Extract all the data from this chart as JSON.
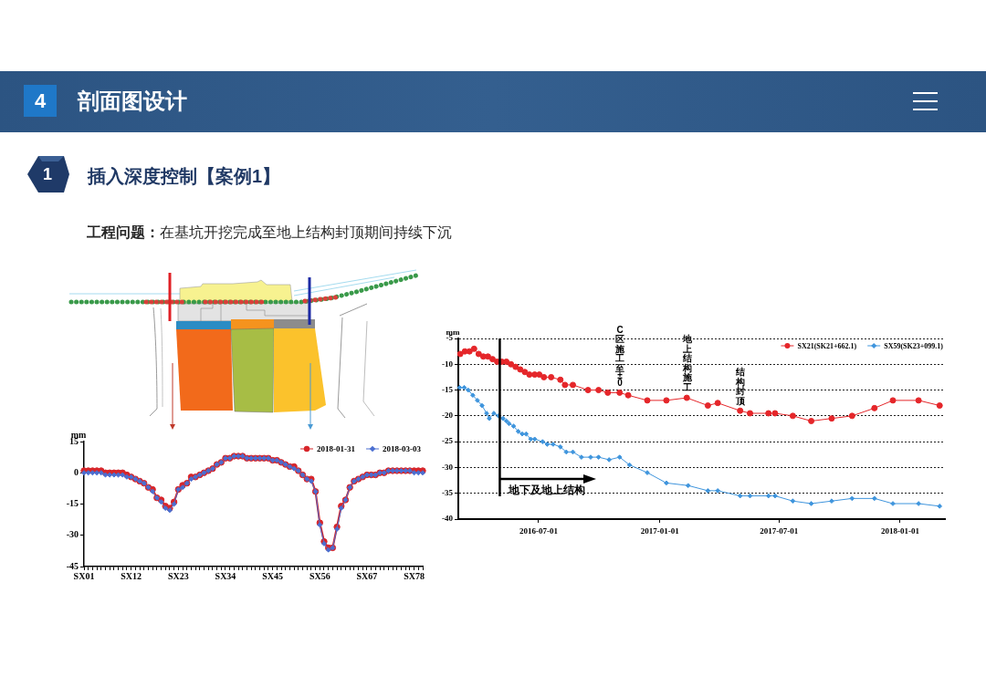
{
  "chart_data": [
    {
      "type": "line",
      "annotations": [
        "4",
        "剖面图设计",
        "1",
        "插入深度控制【案例1】",
        "工程问题：",
        "在基坑开挖完成至地上结构封顶期间持续下沉"
      ],
      "ylabel": "mm",
      "categories": [
        "SX01",
        null,
        null,
        null,
        null,
        null,
        null,
        null,
        null,
        null,
        null,
        "SX12",
        null,
        null,
        null,
        null,
        null,
        null,
        null,
        null,
        null,
        null,
        "SX23",
        null,
        null,
        null,
        null,
        null,
        null,
        null,
        null,
        null,
        null,
        "SX34",
        null,
        null,
        null,
        null,
        null,
        null,
        null,
        null,
        null,
        null,
        "SX45",
        null,
        null,
        null,
        null,
        null,
        null,
        null,
        null,
        null,
        null,
        "SX56",
        null,
        null,
        null,
        null,
        null,
        null,
        null,
        null,
        null,
        null,
        "SX67",
        null,
        null,
        null,
        null,
        null,
        null,
        null,
        null,
        null,
        null,
        "SX78",
        null,
        null
      ],
      "series": [
        {
          "name": "2018-01-31",
          "color": "#d7262b",
          "marker": "circle",
          "values": [
            1,
            1,
            1,
            1,
            1,
            0,
            0,
            0,
            0,
            0,
            -1,
            -2,
            -3,
            -4,
            -5,
            -7,
            -8,
            -12,
            -13,
            -16,
            -17,
            -14,
            -8,
            -6,
            -5,
            -2,
            -2,
            -1,
            0,
            1,
            2,
            4,
            5,
            7,
            7,
            8,
            8,
            8,
            7,
            7,
            7,
            7,
            7,
            7,
            6,
            6,
            5,
            4,
            3,
            3,
            1,
            -1,
            -3,
            -3,
            -9,
            -24,
            -33,
            -36,
            -36,
            -26,
            -16,
            -13,
            -7,
            -4,
            -3,
            -2,
            -1,
            -1,
            -1,
            0,
            0,
            1,
            1,
            1,
            1,
            1,
            1,
            1,
            1,
            1
          ]
        },
        {
          "name": "2018-03-03",
          "color": "#4b6fd1",
          "marker": "diamond",
          "values": [
            0,
            0,
            0,
            0,
            0,
            -1,
            -1,
            -1,
            -1,
            -1,
            -2,
            -2,
            -3,
            -4,
            -5,
            -7,
            -9,
            -12,
            -14,
            -17,
            -18,
            -15,
            -8,
            -7,
            -5,
            -3,
            -2,
            -1,
            0,
            1,
            2,
            4,
            5,
            7,
            7,
            8,
            8,
            8,
            7,
            7,
            7,
            7,
            7,
            7,
            6,
            6,
            5,
            4,
            3,
            2,
            1,
            -1,
            -3,
            -4,
            -9,
            -25,
            -34,
            -37,
            -36,
            -27,
            -17,
            -13,
            -7,
            -4,
            -3,
            -2,
            -1,
            -1,
            -1,
            0,
            0,
            1,
            1,
            1,
            1,
            1,
            1,
            0,
            0,
            0
          ]
        }
      ],
      "ylim": [
        -45,
        15
      ],
      "yticks": [
        -45,
        -30,
        -15,
        0,
        15
      ],
      "legend": "top right"
    },
    {
      "type": "line",
      "ylabel": "mm",
      "series": [
        {
          "name": "SX21(SK21+662.1)",
          "color": "#e5262a",
          "marker": "circle",
          "x": [
            "2016-03-04",
            "2016-03-11",
            "2016-03-18",
            "2016-03-25",
            "2016-04-01",
            "2016-04-08",
            "2016-04-15",
            "2016-04-22",
            "2016-04-29",
            "2016-05-06",
            "2016-05-13",
            "2016-05-20",
            "2016-05-27",
            "2016-06-03",
            "2016-06-10",
            "2016-06-17",
            "2016-06-25",
            "2016-07-02",
            "2016-07-09",
            "2016-07-20",
            "2016-08-03",
            "2016-08-10",
            "2016-08-22",
            "2016-09-14",
            "2016-09-30",
            "2016-10-14",
            "2016-11-01",
            "2016-11-14",
            "2016-12-13",
            "2017-01-11",
            "2017-02-11",
            "2017-03-15",
            "2017-03-30",
            "2017-05-03",
            "2017-05-18",
            "2017-06-15",
            "2017-06-25",
            "2017-07-22",
            "2017-08-19",
            "2017-09-19",
            "2017-10-20",
            "2017-11-23",
            "2017-12-21",
            "2018-01-29",
            "2018-03-02"
          ],
          "values": [
            -8,
            -7.5,
            -7.5,
            -7,
            -8,
            -8.5,
            -8.5,
            -9,
            -9.5,
            -9.5,
            -9.5,
            -10,
            -10.5,
            -11,
            -11.5,
            -12,
            -12,
            -12,
            -12.5,
            -12.5,
            -13,
            -14,
            -14,
            -15,
            -15,
            -15.5,
            -15.5,
            -16,
            -17,
            -17,
            -16.5,
            -18,
            -17.5,
            -19,
            -19.5,
            -19.5,
            -19.5,
            -20,
            -21,
            -20.5,
            -20,
            -18.5,
            -17,
            -17,
            -18
          ]
        },
        {
          "name": "SX59(SK23+099.1)",
          "color": "#3f95dd",
          "marker": "diamond",
          "x": [
            "2016-03-03",
            "2016-03-10",
            "2016-03-16",
            "2016-03-23",
            "2016-03-30",
            "2016-04-06",
            "2016-04-13",
            "2016-04-17",
            "2016-04-24",
            "2016-05-01",
            "2016-05-08",
            "2016-05-13",
            "2016-05-17",
            "2016-05-24",
            "2016-05-31",
            "2016-06-06",
            "2016-06-12",
            "2016-06-19",
            "2016-06-25",
            "2016-07-07",
            "2016-07-14",
            "2016-07-23",
            "2016-08-03",
            "2016-08-12",
            "2016-08-22",
            "2016-09-04",
            "2016-09-18",
            "2016-09-30",
            "2016-10-16",
            "2016-11-01",
            "2016-11-16",
            "2016-12-13",
            "2017-01-11",
            "2017-02-13",
            "2017-03-15",
            "2017-03-30",
            "2017-05-03",
            "2017-05-18",
            "2017-06-15",
            "2017-06-25",
            "2017-07-22",
            "2017-08-19",
            "2017-09-19",
            "2017-10-20",
            "2017-11-23",
            "2017-12-21",
            "2018-01-29",
            "2018-03-02"
          ],
          "values": [
            -14.5,
            -14.5,
            -15,
            -16,
            -17,
            -18,
            -19.5,
            -20.5,
            -19.5,
            -20,
            -20.5,
            -21,
            -21.5,
            -22,
            -23,
            -23.5,
            -23.5,
            -24.5,
            -24.5,
            -25,
            -25.5,
            -25.5,
            -26,
            -27,
            -27,
            -28,
            -28,
            -28,
            -28.5,
            -28,
            -29.5,
            -31,
            -33,
            -33.5,
            -34.5,
            -34.5,
            -35.5,
            -35.5,
            -35.5,
            -35.5,
            -36.5,
            -37,
            -36.5,
            -36,
            -36,
            -37,
            -37,
            -37.5
          ]
        }
      ],
      "xlim": [
        "2016-03-01",
        "2018-03-10"
      ],
      "xticks": [
        "2016-07-01",
        "2017-01-01",
        "2017-07-01",
        "2018-01-01"
      ],
      "ylim": [
        -40,
        -5
      ],
      "yticks": [
        -40,
        -35,
        -30,
        -25,
        -20,
        -15,
        -10,
        -5
      ],
      "grid": "y",
      "legend": "top right",
      "ref_lines": [
        {
          "axis": "x",
          "value": "2016-05-03",
          "label": "地下及地上结构",
          "color": "#000000"
        }
      ],
      "annotations": [
        {
          "text": "C区施工至±0",
          "x": "2016-11-01",
          "y": -14.6
        },
        {
          "text": "地上结构施工",
          "x": "2017-02-12",
          "y": -15.5
        },
        {
          "text": "结构封顶",
          "x": "2017-05-03",
          "y": -18
        }
      ]
    }
  ]
}
